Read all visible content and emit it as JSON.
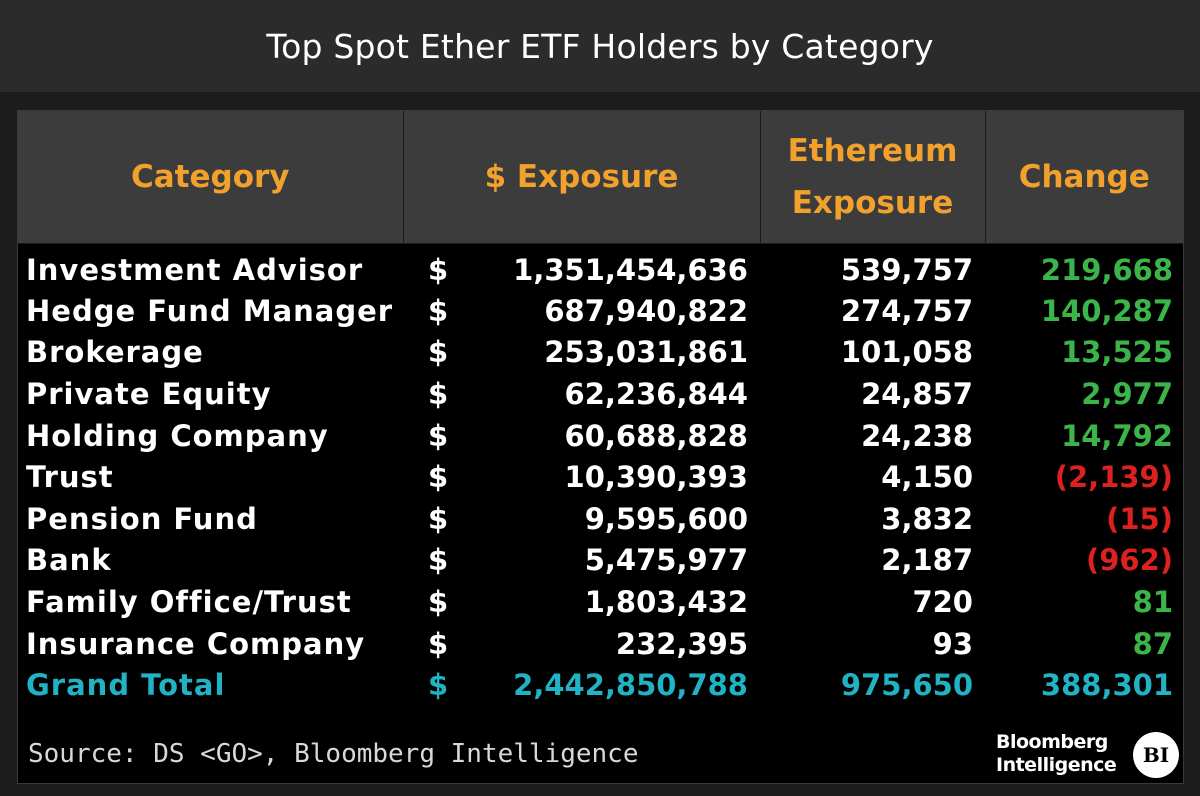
{
  "title": "Top Spot Ether ETF Holders by Category",
  "chart_data": {
    "type": "table",
    "title": "Top Spot Ether ETF Holders by Category",
    "columns": [
      "Category",
      "$ Exposure",
      "Ethereum Exposure",
      "Change"
    ],
    "header_lines": [
      [
        "Category"
      ],
      [
        "$ Exposure"
      ],
      [
        "Ethereum",
        "Exposure"
      ],
      [
        "Change"
      ]
    ],
    "rows": [
      {
        "category": "Investment Advisor",
        "dollar_exposure": "1,351,454,636",
        "eth_exposure": "539,757",
        "change": "219,668",
        "change_value": 219668
      },
      {
        "category": "Hedge Fund Manager",
        "dollar_exposure": "687,940,822",
        "eth_exposure": "274,757",
        "change": "140,287",
        "change_value": 140287
      },
      {
        "category": "Brokerage",
        "dollar_exposure": "253,031,861",
        "eth_exposure": "101,058",
        "change": "13,525",
        "change_value": 13525
      },
      {
        "category": "Private Equity",
        "dollar_exposure": "62,236,844",
        "eth_exposure": "24,857",
        "change": "2,977",
        "change_value": 2977
      },
      {
        "category": "Holding Company",
        "dollar_exposure": "60,688,828",
        "eth_exposure": "24,238",
        "change": "14,792",
        "change_value": 14792
      },
      {
        "category": "Trust",
        "dollar_exposure": "10,390,393",
        "eth_exposure": "4,150",
        "change": "(2,139)",
        "change_value": -2139
      },
      {
        "category": "Pension Fund",
        "dollar_exposure": "9,595,600",
        "eth_exposure": "3,832",
        "change": "(15)",
        "change_value": -15
      },
      {
        "category": "Bank",
        "dollar_exposure": "5,475,977",
        "eth_exposure": "2,187",
        "change": "(962)",
        "change_value": -962
      },
      {
        "category": "Family Office/Trust",
        "dollar_exposure": "1,803,432",
        "eth_exposure": "720",
        "change": "81",
        "change_value": 81
      },
      {
        "category": "Insurance Company",
        "dollar_exposure": "232,395",
        "eth_exposure": "93",
        "change": "87",
        "change_value": 87
      }
    ],
    "total": {
      "category": "Grand Total",
      "dollar_exposure": "2,442,850,788",
      "eth_exposure": "975,650",
      "change": "388,301"
    },
    "currency_symbol": "$"
  },
  "colors": {
    "header_text": "#f2a22c",
    "category_text": "#f2a22c",
    "positive": "#3bb54a",
    "negative": "#dd2020",
    "total": "#21b2c4"
  },
  "footer": {
    "source": "Source: DS <GO>, Bloomberg Intelligence",
    "logo_line1": "Bloomberg",
    "logo_line2": "Intelligence",
    "logo_badge": "BI"
  }
}
